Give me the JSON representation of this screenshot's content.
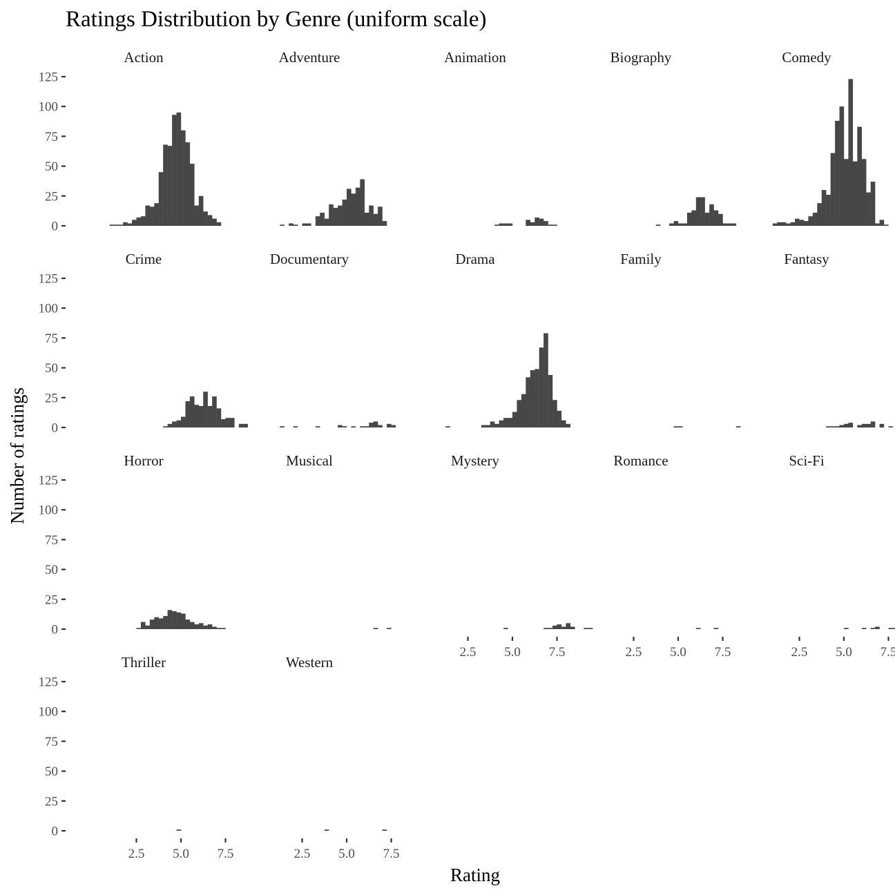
{
  "chart_data": {
    "type": "bar",
    "subtype": "faceted histogram",
    "title": "Ratings Distribution by Genre (uniform scale)",
    "xlabel": "Rating",
    "ylabel": "Number of ratings",
    "ylim": [
      0,
      130
    ],
    "y_ticks": [
      0,
      25,
      50,
      75,
      100,
      125
    ],
    "y_tick_labels": [
      "0",
      "25",
      "50",
      "75",
      "100",
      "125"
    ],
    "x_ticks": [
      2.5,
      5.0,
      7.5
    ],
    "x_tick_labels": [
      "2.5",
      "5.0",
      "7.5"
    ],
    "bin_width": 0.25,
    "layout": {
      "columns": 5,
      "rows": 4
    },
    "bar_color": "#474747",
    "grid": false,
    "panels": [
      {
        "genre": "Action",
        "x_start": 1.0,
        "values": [
          1,
          1,
          1,
          3,
          2,
          5,
          7,
          8,
          17,
          16,
          19,
          45,
          68,
          67,
          93,
          95,
          80,
          70,
          52,
          17,
          25,
          12,
          9,
          6,
          3
        ]
      },
      {
        "genre": "Adventure",
        "x_start": 1.25,
        "values": [
          1,
          0,
          2,
          1,
          0,
          2,
          2,
          0,
          8,
          11,
          6,
          18,
          15,
          17,
          22,
          31,
          27,
          32,
          39,
          11,
          17,
          10,
          16,
          4
        ]
      },
      {
        "genre": "Animation",
        "x_start": 4.0,
        "values": [
          1,
          2,
          2,
          2,
          0,
          0,
          0,
          5,
          3,
          7,
          6,
          4,
          1,
          1
        ]
      },
      {
        "genre": "Biography",
        "x_start": 3.75,
        "values": [
          1,
          0,
          0,
          2,
          4,
          2,
          2,
          11,
          13,
          24,
          24,
          11,
          18,
          13,
          10,
          2,
          2,
          2
        ]
      },
      {
        "genre": "Comedy",
        "x_start": 1.0,
        "values": [
          2,
          3,
          3,
          2,
          3,
          6,
          5,
          4,
          8,
          11,
          19,
          30,
          26,
          61,
          88,
          100,
          56,
          123,
          54,
          83,
          56,
          28,
          37,
          2,
          5,
          1
        ]
      },
      {
        "genre": "Crime",
        "x_start": 4.0,
        "values": [
          1,
          3,
          5,
          6,
          9,
          22,
          26,
          19,
          18,
          30,
          18,
          26,
          16,
          7,
          8,
          8,
          0,
          3,
          3
        ]
      },
      {
        "genre": "Documentary",
        "x_start": 1.25,
        "values": [
          1,
          0,
          0,
          1,
          0,
          0,
          0,
          0,
          1,
          0,
          0,
          0,
          0,
          2,
          1,
          0,
          1,
          0,
          1,
          1,
          4,
          5,
          2,
          0,
          3,
          2
        ]
      },
      {
        "genre": "Drama",
        "x_start": 1.25,
        "values": [
          1,
          0,
          0,
          0,
          0,
          0,
          0,
          0,
          2,
          2,
          5,
          3,
          6,
          8,
          8,
          13,
          23,
          28,
          42,
          48,
          49,
          67,
          79,
          44,
          23,
          14,
          6,
          3
        ]
      },
      {
        "genre": "Family",
        "x_start": 4.75,
        "values": [
          1,
          1,
          0,
          0,
          0,
          0,
          0,
          0,
          0,
          0,
          0,
          0,
          0,
          0,
          1
        ]
      },
      {
        "genre": "Fantasy",
        "x_start": 4.0,
        "values": [
          1,
          1,
          1,
          2,
          3,
          4,
          0,
          2,
          3,
          3,
          5,
          0,
          3,
          0,
          1
        ]
      },
      {
        "genre": "Horror",
        "x_start": 2.5,
        "values": [
          1,
          6,
          3,
          8,
          10,
          9,
          11,
          16,
          15,
          14,
          13,
          8,
          6,
          4,
          5,
          3,
          4,
          2,
          1,
          1
        ]
      },
      {
        "genre": "Musical",
        "x_start": 6.5,
        "values": [
          1,
          0,
          0,
          1
        ]
      },
      {
        "genre": "Mystery",
        "x_start": 4.5,
        "values": [
          1,
          0,
          0,
          0,
          0,
          0,
          0,
          0,
          0,
          1,
          1,
          3,
          4,
          2,
          5,
          2,
          0,
          0,
          1,
          1
        ]
      },
      {
        "genre": "Romance",
        "x_start": 6.0,
        "values": [
          1,
          0,
          0,
          0,
          1
        ]
      },
      {
        "genre": "Sci-Fi",
        "x_start": 5.0,
        "values": [
          1,
          0,
          0,
          0,
          1,
          0,
          1,
          2,
          0,
          0,
          1,
          1,
          0,
          1,
          1,
          0,
          1
        ]
      },
      {
        "genre": "Thriller",
        "x_start": 4.75,
        "values": [
          1
        ]
      },
      {
        "genre": "Western",
        "x_start": 3.75,
        "values": [
          1,
          0,
          0,
          0,
          0,
          0,
          0,
          0,
          0,
          0,
          0,
          0,
          0,
          1
        ]
      }
    ]
  }
}
